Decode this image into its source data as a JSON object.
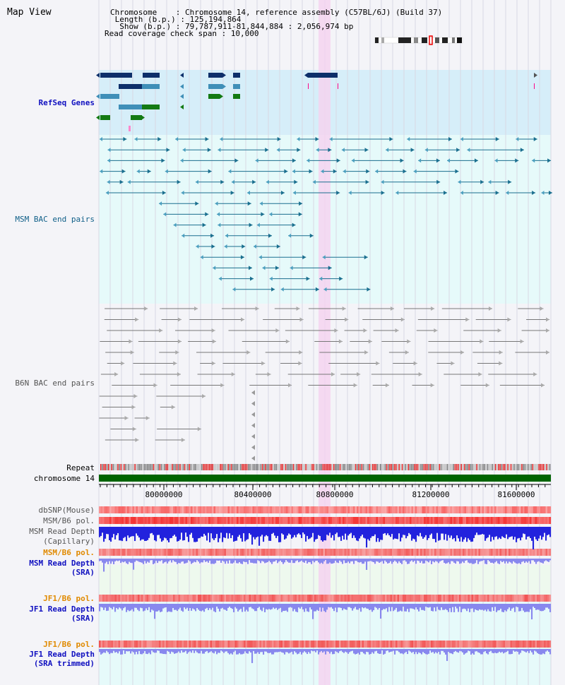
{
  "header": {
    "title": "Map View",
    "info_lines": [
      "Chromosome    : Chromosome 14, reference assembly (C57BL/6J) (Build 37)",
      " Length (b.p.) : 125,194,864",
      "  Show (b.p.) : 79,787,911-81,844,884 : 2,056,974 bp",
      "Read coverage check span : 10,000"
    ]
  },
  "tracks": {
    "refseq": "RefSeq Genes",
    "msm_bac": "MSM BAC end pairs",
    "b6n_bac": "B6N BAC end pairs",
    "repeat": "Repeat",
    "chromosome": "chromosome 14",
    "dbsnp": "dbSNP(Mouse)",
    "msm_b6_pol_1": "MSM/B6 pol.",
    "msm_read_depth_cap_1": "MSM Read Depth",
    "msm_read_depth_cap_2": "(Capillary)",
    "msm_b6_pol_2": "MSM/B6 pol.",
    "msm_read_depth_sra_1": "MSM Read Depth",
    "msm_read_depth_sra_2": "(SRA)",
    "jf1_b6_pol_1": "JF1/B6 pol.",
    "jf1_read_depth_sra_1": "JF1 Read Depth",
    "jf1_read_depth_sra_2": "(SRA)",
    "jf1_b6_pol_2": "JF1/B6 pol.",
    "jf1_read_depth_trim_1": "JF1 Read Depth",
    "jf1_read_depth_trim_2": "(SRA trimmed)"
  },
  "axis": {
    "ticks": [
      "80000000",
      "80400000",
      "80800000",
      "81200000",
      "81600000"
    ]
  },
  "colors": {
    "refseq_bg": "#d6eef9",
    "msm_bac_bg": "#e6fafa",
    "b6n_bg": "#f5f5f8",
    "highlight": "#f5d4f0",
    "chrom_bar": "#006400",
    "msm_feature": "#1a6f8f",
    "b6n_feature": "#777777",
    "refseq_dark": "#0d2f6a",
    "refseq_mid": "#3f8fb8",
    "refseq_green": "#137a13",
    "depth_blue": "#2222dd",
    "depth_light": "#8888ee",
    "pol_red": "#ee3333"
  }
}
